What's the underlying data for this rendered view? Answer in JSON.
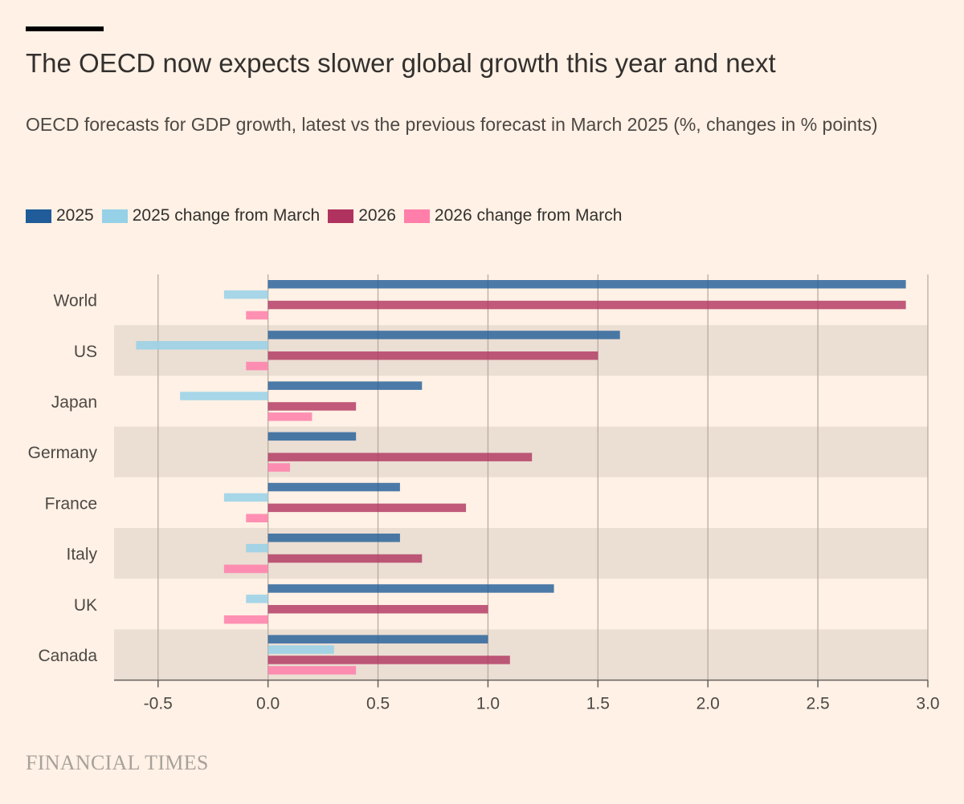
{
  "header": {
    "title": "The OECD now expects slower global growth this year and next",
    "subtitle": "OECD forecasts for GDP growth, latest vs the previous forecast in March 2025 (%, changes in % points)"
  },
  "legend": {
    "items": [
      {
        "label": "2025",
        "color": "#1F5C99"
      },
      {
        "label": "2025 change from March",
        "color": "#96D1E8"
      },
      {
        "label": "2026",
        "color": "#B0335F"
      },
      {
        "label": "2026 change from March",
        "color": "#FF7FAA"
      }
    ]
  },
  "footer": {
    "source": "FINANCIAL TIMES"
  },
  "chart_data": {
    "type": "bar",
    "orientation": "horizontal",
    "title": "The OECD now expects slower global growth this year and next",
    "subtitle": "OECD forecasts for GDP growth, latest vs the previous forecast in March 2025 (%, changes in % points)",
    "categories": [
      "World",
      "US",
      "Japan",
      "Germany",
      "France",
      "Italy",
      "UK",
      "Canada"
    ],
    "series": [
      {
        "name": "2025",
        "color": "#1F5C99",
        "values": [
          2.9,
          1.6,
          0.7,
          0.4,
          0.6,
          0.6,
          1.3,
          1.0
        ]
      },
      {
        "name": "2025 change from March",
        "color": "#96D1E8",
        "values": [
          -0.2,
          -0.6,
          -0.4,
          0.0,
          -0.2,
          -0.1,
          -0.1,
          0.3
        ]
      },
      {
        "name": "2026",
        "color": "#B0335F",
        "values": [
          2.9,
          1.5,
          0.4,
          1.2,
          0.9,
          0.7,
          1.0,
          1.1
        ]
      },
      {
        "name": "2026 change from March",
        "color": "#FF7FAA",
        "values": [
          -0.1,
          -0.1,
          0.2,
          0.1,
          -0.1,
          -0.2,
          -0.2,
          0.4
        ]
      }
    ],
    "xlim": [
      -0.7,
      3.0
    ],
    "xticks": [
      "-0.5",
      "0.0",
      "0.5",
      "1.0",
      "1.5",
      "2.0",
      "2.5",
      "3.0"
    ],
    "xtick_values": [
      -0.5,
      0.0,
      0.5,
      1.0,
      1.5,
      2.0,
      2.5,
      3.0
    ],
    "grid": true,
    "legend_position": "top-left",
    "band_color": "#EBDED3"
  }
}
